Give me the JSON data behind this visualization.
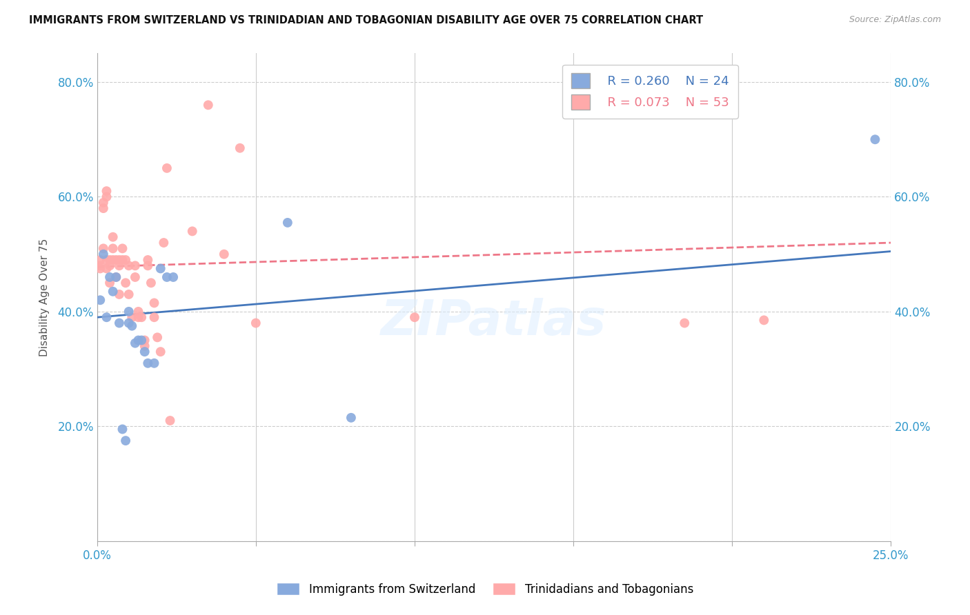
{
  "title": "IMMIGRANTS FROM SWITZERLAND VS TRINIDADIAN AND TOBAGONIAN DISABILITY AGE OVER 75 CORRELATION CHART",
  "source": "Source: ZipAtlas.com",
  "ylabel": "Disability Age Over 75",
  "xlim": [
    0.0,
    0.25
  ],
  "ylim": [
    0.0,
    0.85
  ],
  "xticks": [
    0.0,
    0.05,
    0.1,
    0.15,
    0.2,
    0.25
  ],
  "yticks": [
    0.0,
    0.2,
    0.4,
    0.6,
    0.8
  ],
  "ytick_labels": [
    "",
    "20.0%",
    "40.0%",
    "60.0%",
    "80.0%"
  ],
  "xtick_labels": [
    "0.0%",
    "",
    "",
    "",
    "",
    "25.0%"
  ],
  "swiss_color": "#88AADD",
  "tnt_color": "#FFAAAA",
  "swiss_line_color": "#4477BB",
  "tnt_line_color": "#EE7788",
  "watermark": "ZIPatlas",
  "legend_R_swiss": "R = 0.260",
  "legend_N_swiss": "N = 24",
  "legend_R_tnt": "R = 0.073",
  "legend_N_tnt": "N = 53",
  "swiss_scatter_x": [
    0.001,
    0.002,
    0.003,
    0.004,
    0.005,
    0.006,
    0.007,
    0.008,
    0.009,
    0.01,
    0.01,
    0.011,
    0.012,
    0.013,
    0.014,
    0.015,
    0.016,
    0.018,
    0.02,
    0.022,
    0.024,
    0.06,
    0.08,
    0.245
  ],
  "swiss_scatter_y": [
    0.42,
    0.5,
    0.39,
    0.46,
    0.435,
    0.46,
    0.38,
    0.195,
    0.175,
    0.4,
    0.38,
    0.375,
    0.345,
    0.35,
    0.35,
    0.33,
    0.31,
    0.31,
    0.475,
    0.46,
    0.46,
    0.555,
    0.215,
    0.7
  ],
  "tnt_scatter_x": [
    0.001,
    0.001,
    0.001,
    0.002,
    0.002,
    0.002,
    0.003,
    0.003,
    0.003,
    0.003,
    0.004,
    0.004,
    0.004,
    0.005,
    0.005,
    0.005,
    0.006,
    0.006,
    0.007,
    0.007,
    0.007,
    0.008,
    0.008,
    0.009,
    0.009,
    0.01,
    0.01,
    0.011,
    0.012,
    0.012,
    0.013,
    0.013,
    0.014,
    0.015,
    0.015,
    0.016,
    0.016,
    0.017,
    0.018,
    0.018,
    0.019,
    0.02,
    0.021,
    0.022,
    0.023,
    0.03,
    0.035,
    0.04,
    0.045,
    0.05,
    0.1,
    0.185,
    0.21
  ],
  "tnt_scatter_y": [
    0.49,
    0.48,
    0.475,
    0.59,
    0.58,
    0.51,
    0.61,
    0.6,
    0.49,
    0.475,
    0.49,
    0.48,
    0.45,
    0.53,
    0.51,
    0.49,
    0.49,
    0.46,
    0.49,
    0.48,
    0.43,
    0.51,
    0.49,
    0.49,
    0.45,
    0.48,
    0.43,
    0.39,
    0.48,
    0.46,
    0.4,
    0.39,
    0.39,
    0.35,
    0.34,
    0.49,
    0.48,
    0.45,
    0.415,
    0.39,
    0.355,
    0.33,
    0.52,
    0.65,
    0.21,
    0.54,
    0.76,
    0.5,
    0.685,
    0.38,
    0.39,
    0.38,
    0.385
  ],
  "swiss_line_x0": 0.0,
  "swiss_line_y0": 0.39,
  "swiss_line_x1": 0.25,
  "swiss_line_y1": 0.505,
  "tnt_line_x0": 0.0,
  "tnt_line_y0": 0.478,
  "tnt_line_x1": 0.25,
  "tnt_line_y1": 0.52
}
